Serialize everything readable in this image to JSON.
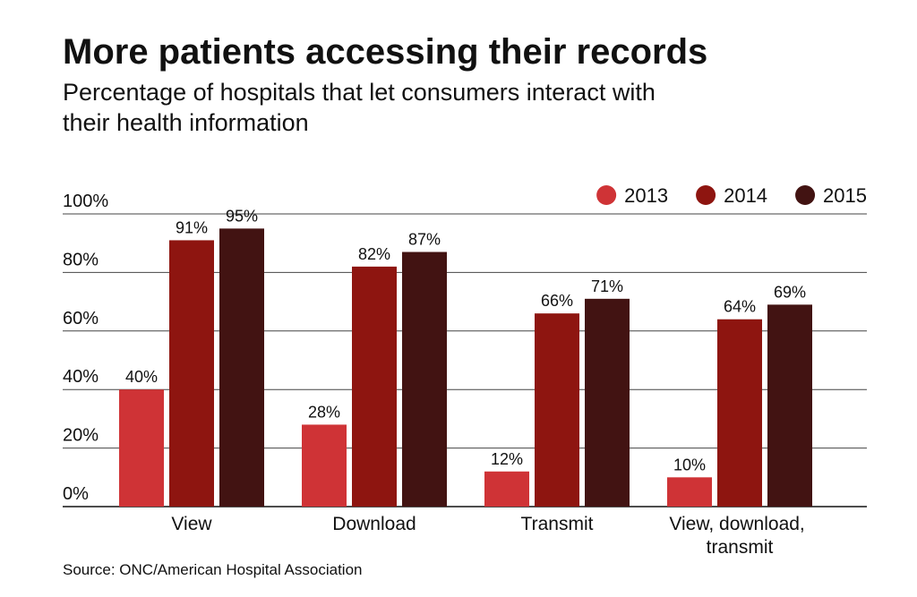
{
  "chart_data": {
    "type": "bar",
    "title": "More patients accessing their records",
    "subtitle": "Percentage of hospitals that let consumers interact with their health information",
    "source": "Source: ONC/American Hospital Association",
    "categories": [
      "View",
      "Download",
      "Transmit",
      "View, download, transmit"
    ],
    "series": [
      {
        "name": "2013",
        "color": "#cf3336",
        "values": [
          40,
          28,
          12,
          10
        ],
        "value_labels": [
          "40%",
          "28%",
          "12%",
          "10%"
        ]
      },
      {
        "name": "2014",
        "color": "#8e1510",
        "values": [
          91,
          82,
          66,
          64
        ],
        "value_labels": [
          "91%",
          "82%",
          "66%",
          "64%"
        ]
      },
      {
        "name": "2015",
        "color": "#421312",
        "values": [
          95,
          87,
          71,
          69
        ],
        "value_labels": [
          "95%",
          "87%",
          "71%",
          "69%"
        ]
      }
    ],
    "ylim": [
      0,
      100
    ],
    "yticks": [
      {
        "value": 0,
        "label": "0%"
      },
      {
        "value": 20,
        "label": "20%"
      },
      {
        "value": 40,
        "label": "40%"
      },
      {
        "value": 60,
        "label": "60%"
      },
      {
        "value": 80,
        "label": "80%"
      },
      {
        "value": 100,
        "label": "100%"
      }
    ],
    "grid": true,
    "legend": "top-right"
  }
}
